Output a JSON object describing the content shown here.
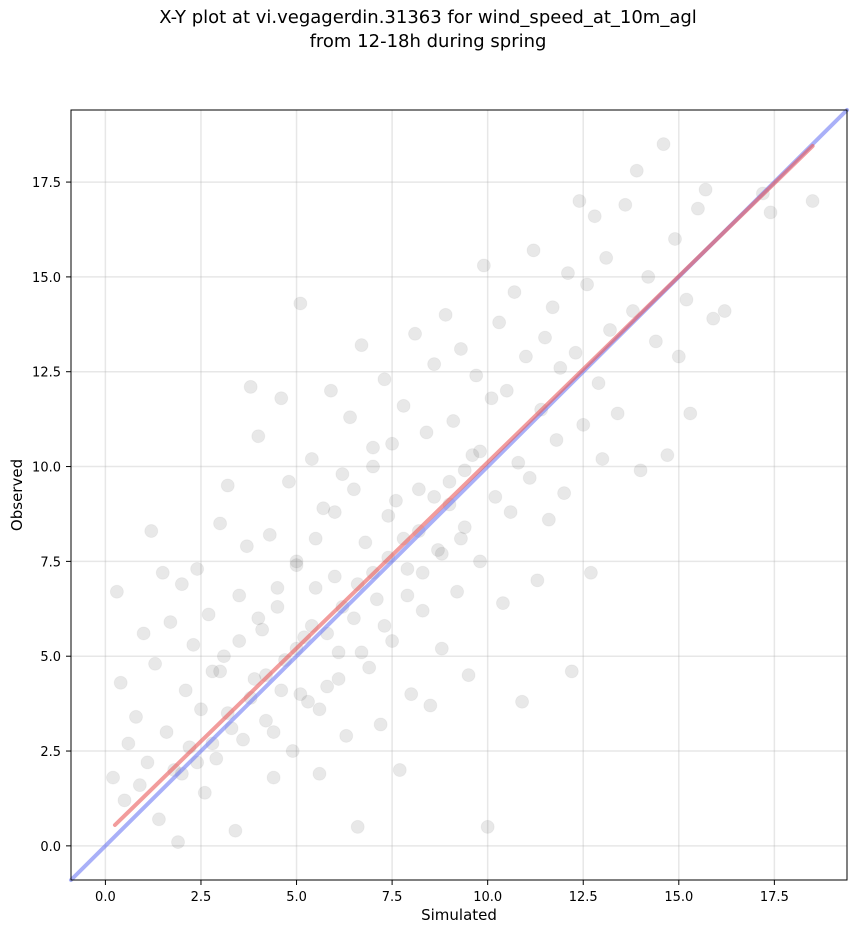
{
  "title": {
    "line1": "X-Y plot at vi.vegagerdin.31363 for wind_speed_at_10m_agl",
    "line2": "from 12-18h during spring"
  },
  "chart_data": {
    "type": "scatter",
    "xlabel": "Simulated",
    "ylabel": "Observed",
    "xlim": [
      -0.9,
      19.4
    ],
    "ylim": [
      -0.9,
      19.4
    ],
    "xticks": [
      "0.0",
      "2.5",
      "5.0",
      "7.5",
      "10.0",
      "12.5",
      "15.0",
      "17.5"
    ],
    "yticks": [
      "0.0",
      "2.5",
      "5.0",
      "7.5",
      "10.0",
      "12.5",
      "15.0",
      "17.5"
    ],
    "grid": true,
    "colors": {
      "points": "#000000",
      "identity_line": "#6f7cf4",
      "fit_line": "#ea5a5a"
    },
    "series": [
      {
        "values_description_free": true,
        "points": [
          [
            0.2,
            1.8
          ],
          [
            0.3,
            6.7
          ],
          [
            0.4,
            4.3
          ],
          [
            0.5,
            1.2
          ],
          [
            0.6,
            2.7
          ],
          [
            0.8,
            3.4
          ],
          [
            0.9,
            1.6
          ],
          [
            1.0,
            5.6
          ],
          [
            1.1,
            2.2
          ],
          [
            1.2,
            8.3
          ],
          [
            1.3,
            4.8
          ],
          [
            1.4,
            0.7
          ],
          [
            1.5,
            7.2
          ],
          [
            1.6,
            3.0
          ],
          [
            1.7,
            5.9
          ],
          [
            1.8,
            2.0
          ],
          [
            1.9,
            0.1
          ],
          [
            2.0,
            6.9
          ],
          [
            2.1,
            4.1
          ],
          [
            2.2,
            2.6
          ],
          [
            2.3,
            5.3
          ],
          [
            2.4,
            7.3
          ],
          [
            2.5,
            3.6
          ],
          [
            2.6,
            1.4
          ],
          [
            2.7,
            6.1
          ],
          [
            2.8,
            4.6
          ],
          [
            2.9,
            2.3
          ],
          [
            3.0,
            8.5
          ],
          [
            3.1,
            5.0
          ],
          [
            3.2,
            9.5
          ],
          [
            3.3,
            3.1
          ],
          [
            3.4,
            0.4
          ],
          [
            3.5,
            6.6
          ],
          [
            3.6,
            2.8
          ],
          [
            3.7,
            7.9
          ],
          [
            3.8,
            12.1
          ],
          [
            3.9,
            4.4
          ],
          [
            4.0,
            10.8
          ],
          [
            4.1,
            5.7
          ],
          [
            4.2,
            3.3
          ],
          [
            4.3,
            8.2
          ],
          [
            4.4,
            1.8
          ],
          [
            4.5,
            6.3
          ],
          [
            4.6,
            11.8
          ],
          [
            4.7,
            4.9
          ],
          [
            4.8,
            9.6
          ],
          [
            4.9,
            2.5
          ],
          [
            5.0,
            7.4
          ],
          [
            5.1,
            14.3
          ],
          [
            5.2,
            5.5
          ],
          [
            5.3,
            3.8
          ],
          [
            5.4,
            10.2
          ],
          [
            5.5,
            6.8
          ],
          [
            5.6,
            1.9
          ],
          [
            5.7,
            8.9
          ],
          [
            5.8,
            4.2
          ],
          [
            5.9,
            12.0
          ],
          [
            6.0,
            7.1
          ],
          [
            6.1,
            5.1
          ],
          [
            6.2,
            9.8
          ],
          [
            6.3,
            2.9
          ],
          [
            6.4,
            11.3
          ],
          [
            6.5,
            6.0
          ],
          [
            6.6,
            0.5
          ],
          [
            6.7,
            13.2
          ],
          [
            6.8,
            8.0
          ],
          [
            6.9,
            4.7
          ],
          [
            7.0,
            10.5
          ],
          [
            7.1,
            6.5
          ],
          [
            7.2,
            3.2
          ],
          [
            7.3,
            12.3
          ],
          [
            7.4,
            8.7
          ],
          [
            7.5,
            5.4
          ],
          [
            7.6,
            9.1
          ],
          [
            7.7,
            2.0
          ],
          [
            7.8,
            11.6
          ],
          [
            7.9,
            7.3
          ],
          [
            8.0,
            4.0
          ],
          [
            8.1,
            13.5
          ],
          [
            8.2,
            9.4
          ],
          [
            8.3,
            6.2
          ],
          [
            8.4,
            10.9
          ],
          [
            8.5,
            3.7
          ],
          [
            8.6,
            12.7
          ],
          [
            8.7,
            7.8
          ],
          [
            8.8,
            5.2
          ],
          [
            8.9,
            14.0
          ],
          [
            9.0,
            9.0
          ],
          [
            9.1,
            11.2
          ],
          [
            9.2,
            6.7
          ],
          [
            9.3,
            13.1
          ],
          [
            9.4,
            8.4
          ],
          [
            9.5,
            4.5
          ],
          [
            9.6,
            10.3
          ],
          [
            9.7,
            12.4
          ],
          [
            9.8,
            7.5
          ],
          [
            9.9,
            15.3
          ],
          [
            10.0,
            0.5
          ],
          [
            10.1,
            11.8
          ],
          [
            10.2,
            9.2
          ],
          [
            10.3,
            13.8
          ],
          [
            10.4,
            6.4
          ],
          [
            10.5,
            12.0
          ],
          [
            10.6,
            8.8
          ],
          [
            10.7,
            14.6
          ],
          [
            10.8,
            10.1
          ],
          [
            10.9,
            3.8
          ],
          [
            11.0,
            12.9
          ],
          [
            11.1,
            9.7
          ],
          [
            11.2,
            15.7
          ],
          [
            11.3,
            7.0
          ],
          [
            11.4,
            11.5
          ],
          [
            11.5,
            13.4
          ],
          [
            11.6,
            8.6
          ],
          [
            11.7,
            14.2
          ],
          [
            11.8,
            10.7
          ],
          [
            11.9,
            12.6
          ],
          [
            12.0,
            9.3
          ],
          [
            12.1,
            15.1
          ],
          [
            12.2,
            4.6
          ],
          [
            12.3,
            13.0
          ],
          [
            12.4,
            17.0
          ],
          [
            12.5,
            11.1
          ],
          [
            12.6,
            14.8
          ],
          [
            12.7,
            7.2
          ],
          [
            12.8,
            16.6
          ],
          [
            12.9,
            12.2
          ],
          [
            13.0,
            10.2
          ],
          [
            13.1,
            15.5
          ],
          [
            13.2,
            13.6
          ],
          [
            13.4,
            11.4
          ],
          [
            13.6,
            16.9
          ],
          [
            13.8,
            14.1
          ],
          [
            13.9,
            17.8
          ],
          [
            14.0,
            9.9
          ],
          [
            14.2,
            15.0
          ],
          [
            14.4,
            13.3
          ],
          [
            14.6,
            18.5
          ],
          [
            14.7,
            10.3
          ],
          [
            14.9,
            16.0
          ],
          [
            15.0,
            12.9
          ],
          [
            15.2,
            14.4
          ],
          [
            15.3,
            11.4
          ],
          [
            15.5,
            16.8
          ],
          [
            15.7,
            17.3
          ],
          [
            15.9,
            13.9
          ],
          [
            16.2,
            14.1
          ],
          [
            17.2,
            17.2
          ],
          [
            17.4,
            16.7
          ],
          [
            18.5,
            17.0
          ],
          [
            3.8,
            3.9
          ],
          [
            4.2,
            4.5
          ],
          [
            4.6,
            4.1
          ],
          [
            5.0,
            5.2
          ],
          [
            5.4,
            5.8
          ],
          [
            5.8,
            5.6
          ],
          [
            6.2,
            6.3
          ],
          [
            6.6,
            6.9
          ],
          [
            7.0,
            7.2
          ],
          [
            7.4,
            7.6
          ],
          [
            7.8,
            8.1
          ],
          [
            8.2,
            8.3
          ],
          [
            8.6,
            9.2
          ],
          [
            9.0,
            9.6
          ],
          [
            9.4,
            9.9
          ],
          [
            9.8,
            10.4
          ],
          [
            3.2,
            3.5
          ],
          [
            2.8,
            2.7
          ],
          [
            2.4,
            2.2
          ],
          [
            2.0,
            1.9
          ],
          [
            4.4,
            3.0
          ],
          [
            5.1,
            4.0
          ],
          [
            5.6,
            3.6
          ],
          [
            6.1,
            4.4
          ],
          [
            6.7,
            5.1
          ],
          [
            7.3,
            5.8
          ],
          [
            7.9,
            6.6
          ],
          [
            8.3,
            7.2
          ],
          [
            8.8,
            7.7
          ],
          [
            9.3,
            8.1
          ],
          [
            3.0,
            4.6
          ],
          [
            3.5,
            5.4
          ],
          [
            4.0,
            6.0
          ],
          [
            4.5,
            6.8
          ],
          [
            5.0,
            7.5
          ],
          [
            5.5,
            8.1
          ],
          [
            6.0,
            8.8
          ],
          [
            6.5,
            9.4
          ],
          [
            7.0,
            10.0
          ],
          [
            7.5,
            10.6
          ]
        ]
      }
    ],
    "lines": [
      {
        "name_free": true,
        "kind": "identity",
        "x": [
          -0.9,
          19.4
        ],
        "y": [
          -0.9,
          19.4
        ]
      },
      {
        "name_free": true,
        "kind": "fit",
        "x": [
          0.25,
          18.5
        ],
        "y": [
          0.55,
          18.45
        ]
      }
    ]
  }
}
